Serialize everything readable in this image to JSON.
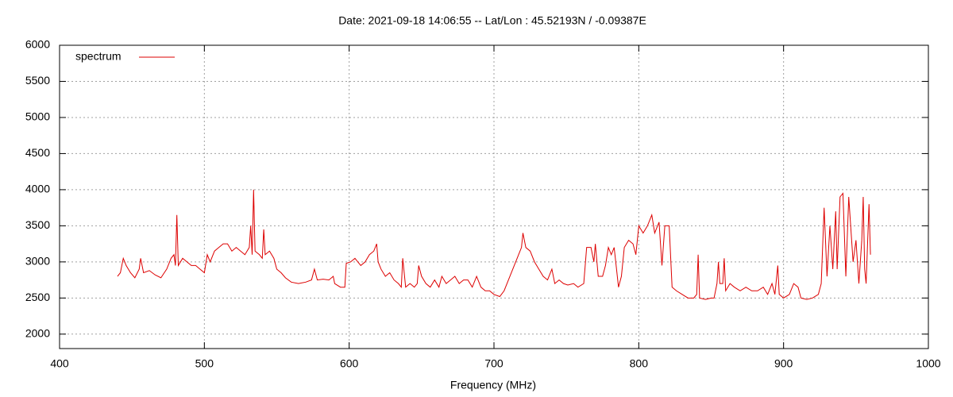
{
  "chart_data": {
    "type": "line",
    "title": "Date: 2021-09-18 14:06:55  --  Lat/Lon : 45.52193N / -0.09387E",
    "x_label": "Frequency (MHz)",
    "xlim": [
      400,
      1000
    ],
    "xticks": [
      400,
      500,
      600,
      700,
      800,
      900,
      1000
    ],
    "ylim": [
      1800,
      6000
    ],
    "yticks": [
      2000,
      2500,
      3000,
      3500,
      4000,
      4500,
      5000,
      5500,
      6000
    ],
    "grid": true,
    "legend": "top-left",
    "x": [
      440,
      442,
      444,
      446,
      449,
      452,
      455,
      456,
      458,
      462,
      466,
      470,
      474,
      477,
      479,
      480,
      481,
      482,
      485,
      488,
      491,
      494,
      497,
      500,
      502,
      504,
      507,
      510,
      513,
      516,
      519,
      522,
      525,
      528,
      531,
      532,
      533,
      534,
      535,
      538,
      540,
      541,
      542,
      545,
      548,
      550,
      553,
      556,
      560,
      565,
      570,
      574,
      576,
      578,
      582,
      586,
      589,
      590,
      594,
      597,
      598,
      601,
      604,
      608,
      611,
      614,
      617,
      619,
      620,
      622,
      625,
      628,
      631,
      634,
      636,
      637,
      639,
      642,
      645,
      647,
      648,
      650,
      653,
      656,
      659,
      662,
      664,
      667,
      670,
      673,
      676,
      679,
      682,
      685,
      688,
      691,
      694,
      697,
      700,
      704,
      707,
      710,
      713,
      716,
      719,
      720,
      722,
      725,
      728,
      731,
      734,
      737,
      740,
      742,
      745,
      748,
      751,
      755,
      758,
      762,
      764,
      767,
      769,
      770,
      772,
      775,
      777,
      779,
      781,
      783,
      786,
      788,
      790,
      793,
      796,
      798,
      800,
      803,
      806,
      809,
      811,
      814,
      816,
      818,
      821,
      823,
      826,
      830,
      834,
      838,
      840,
      841,
      842,
      846,
      850,
      852,
      854,
      855,
      856,
      858,
      859,
      860,
      863,
      866,
      870,
      874,
      878,
      882,
      886,
      889,
      892,
      894,
      896,
      897,
      900,
      904,
      907,
      910,
      912,
      916,
      920,
      924,
      926,
      928,
      930,
      932,
      934,
      936,
      937,
      939,
      941,
      943,
      945,
      947,
      948,
      950,
      952,
      954,
      955,
      956,
      957,
      959,
      960
    ],
    "series": [
      {
        "name": "spectrum",
        "color": "#dd0000",
        "values": [
          2800,
          2850,
          3050,
          2950,
          2850,
          2780,
          2900,
          3050,
          2850,
          2880,
          2820,
          2780,
          2900,
          3050,
          3100,
          2950,
          3650,
          2950,
          3050,
          3000,
          2950,
          2950,
          2900,
          2850,
          3100,
          3000,
          3150,
          3200,
          3250,
          3250,
          3150,
          3200,
          3150,
          3100,
          3200,
          3500,
          3100,
          4000,
          3150,
          3100,
          3050,
          3450,
          3100,
          3150,
          3050,
          2900,
          2850,
          2780,
          2720,
          2700,
          2720,
          2750,
          2900,
          2750,
          2760,
          2750,
          2800,
          2700,
          2650,
          2650,
          2980,
          3000,
          3050,
          2950,
          3000,
          3100,
          3150,
          3250,
          3000,
          2900,
          2800,
          2850,
          2750,
          2700,
          2650,
          3050,
          2650,
          2700,
          2650,
          2700,
          2950,
          2800,
          2700,
          2650,
          2750,
          2650,
          2800,
          2700,
          2750,
          2800,
          2700,
          2750,
          2750,
          2650,
          2800,
          2650,
          2600,
          2600,
          2550,
          2520,
          2600,
          2750,
          2900,
          3050,
          3200,
          3400,
          3200,
          3150,
          3000,
          2900,
          2800,
          2750,
          2900,
          2700,
          2750,
          2700,
          2680,
          2700,
          2650,
          2700,
          3200,
          3200,
          3000,
          3250,
          2800,
          2800,
          2950,
          3200,
          3100,
          3200,
          2650,
          2800,
          3200,
          3300,
          3250,
          3100,
          3500,
          3400,
          3500,
          3650,
          3400,
          3550,
          2950,
          3500,
          3500,
          2650,
          2600,
          2550,
          2500,
          2500,
          2550,
          3100,
          2500,
          2480,
          2500,
          2500,
          2700,
          3000,
          2700,
          2700,
          3050,
          2600,
          2700,
          2650,
          2600,
          2650,
          2600,
          2600,
          2650,
          2550,
          2700,
          2550,
          2950,
          2550,
          2500,
          2550,
          2700,
          2650,
          2500,
          2480,
          2500,
          2550,
          2700,
          3750,
          2800,
          3500,
          2900,
          3700,
          2900,
          3900,
          3950,
          2800,
          3900,
          3300,
          3000,
          3300,
          2700,
          3300,
          3900,
          2900,
          2700,
          3800,
          3100
        ]
      }
    ]
  }
}
